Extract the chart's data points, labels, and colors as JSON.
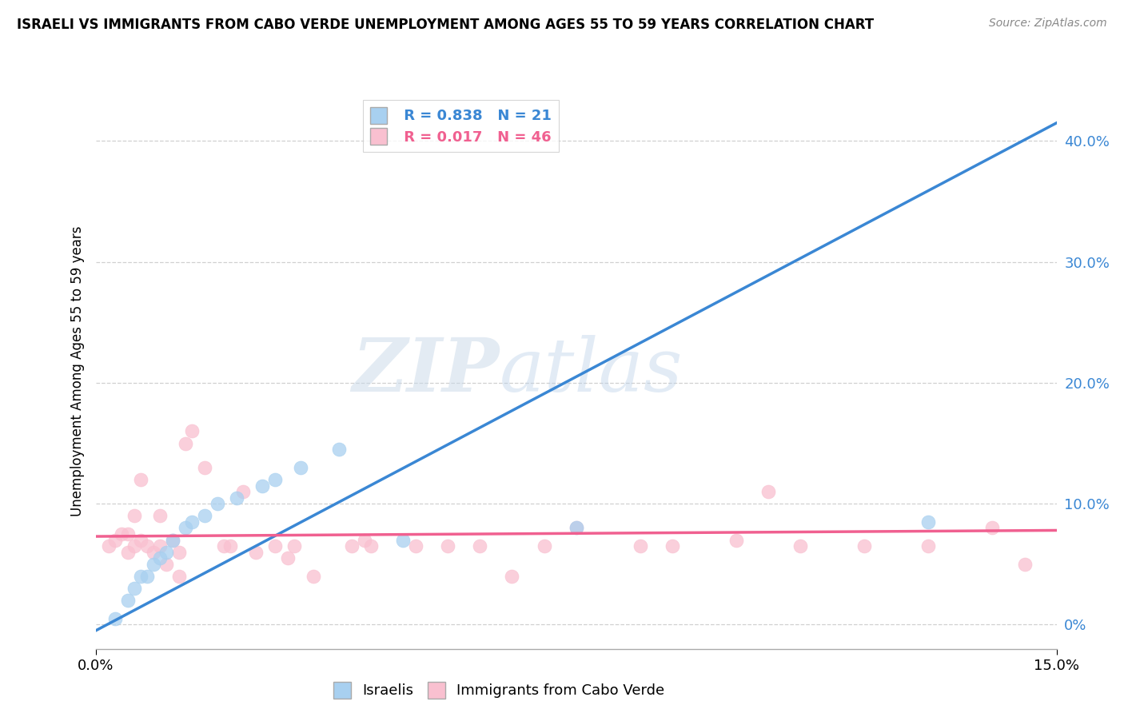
{
  "title": "ISRAELI VS IMMIGRANTS FROM CABO VERDE UNEMPLOYMENT AMONG AGES 55 TO 59 YEARS CORRELATION CHART",
  "source": "Source: ZipAtlas.com",
  "ylabel": "Unemployment Among Ages 55 to 59 years",
  "xlim": [
    0.0,
    0.15
  ],
  "ylim": [
    -0.02,
    0.44
  ],
  "legend_israeli_R": "0.838",
  "legend_israeli_N": "21",
  "legend_cabo_R": "0.017",
  "legend_cabo_N": "46",
  "israeli_color": "#a8d0f0",
  "cabo_color": "#f9c0d0",
  "israeli_line_color": "#3a87d4",
  "cabo_line_color": "#f06090",
  "watermark_zip": "ZIP",
  "watermark_atlas": "atlas",
  "israeli_x": [
    0.003,
    0.005,
    0.006,
    0.007,
    0.008,
    0.009,
    0.01,
    0.011,
    0.012,
    0.014,
    0.015,
    0.017,
    0.019,
    0.022,
    0.026,
    0.028,
    0.032,
    0.038,
    0.048,
    0.075,
    0.13
  ],
  "israeli_y": [
    0.005,
    0.02,
    0.03,
    0.04,
    0.04,
    0.05,
    0.055,
    0.06,
    0.07,
    0.08,
    0.085,
    0.09,
    0.1,
    0.105,
    0.115,
    0.12,
    0.13,
    0.145,
    0.07,
    0.08,
    0.085
  ],
  "cabo_x": [
    0.002,
    0.003,
    0.004,
    0.005,
    0.005,
    0.006,
    0.006,
    0.007,
    0.007,
    0.008,
    0.009,
    0.01,
    0.01,
    0.011,
    0.012,
    0.013,
    0.013,
    0.014,
    0.015,
    0.017,
    0.02,
    0.021,
    0.023,
    0.025,
    0.028,
    0.03,
    0.031,
    0.034,
    0.04,
    0.042,
    0.043,
    0.05,
    0.055,
    0.06,
    0.065,
    0.07,
    0.075,
    0.085,
    0.09,
    0.1,
    0.105,
    0.11,
    0.12,
    0.13,
    0.14,
    0.145
  ],
  "cabo_y": [
    0.065,
    0.07,
    0.075,
    0.06,
    0.075,
    0.065,
    0.09,
    0.07,
    0.12,
    0.065,
    0.06,
    0.065,
    0.09,
    0.05,
    0.07,
    0.04,
    0.06,
    0.15,
    0.16,
    0.13,
    0.065,
    0.065,
    0.11,
    0.06,
    0.065,
    0.055,
    0.065,
    0.04,
    0.065,
    0.07,
    0.065,
    0.065,
    0.065,
    0.065,
    0.04,
    0.065,
    0.08,
    0.065,
    0.065,
    0.07,
    0.11,
    0.065,
    0.065,
    0.065,
    0.08,
    0.05
  ],
  "israeli_line_x": [
    0.0,
    0.15
  ],
  "israeli_line_y": [
    -0.005,
    0.415
  ],
  "cabo_line_x": [
    0.0,
    0.15
  ],
  "cabo_line_y": [
    0.073,
    0.078
  ]
}
